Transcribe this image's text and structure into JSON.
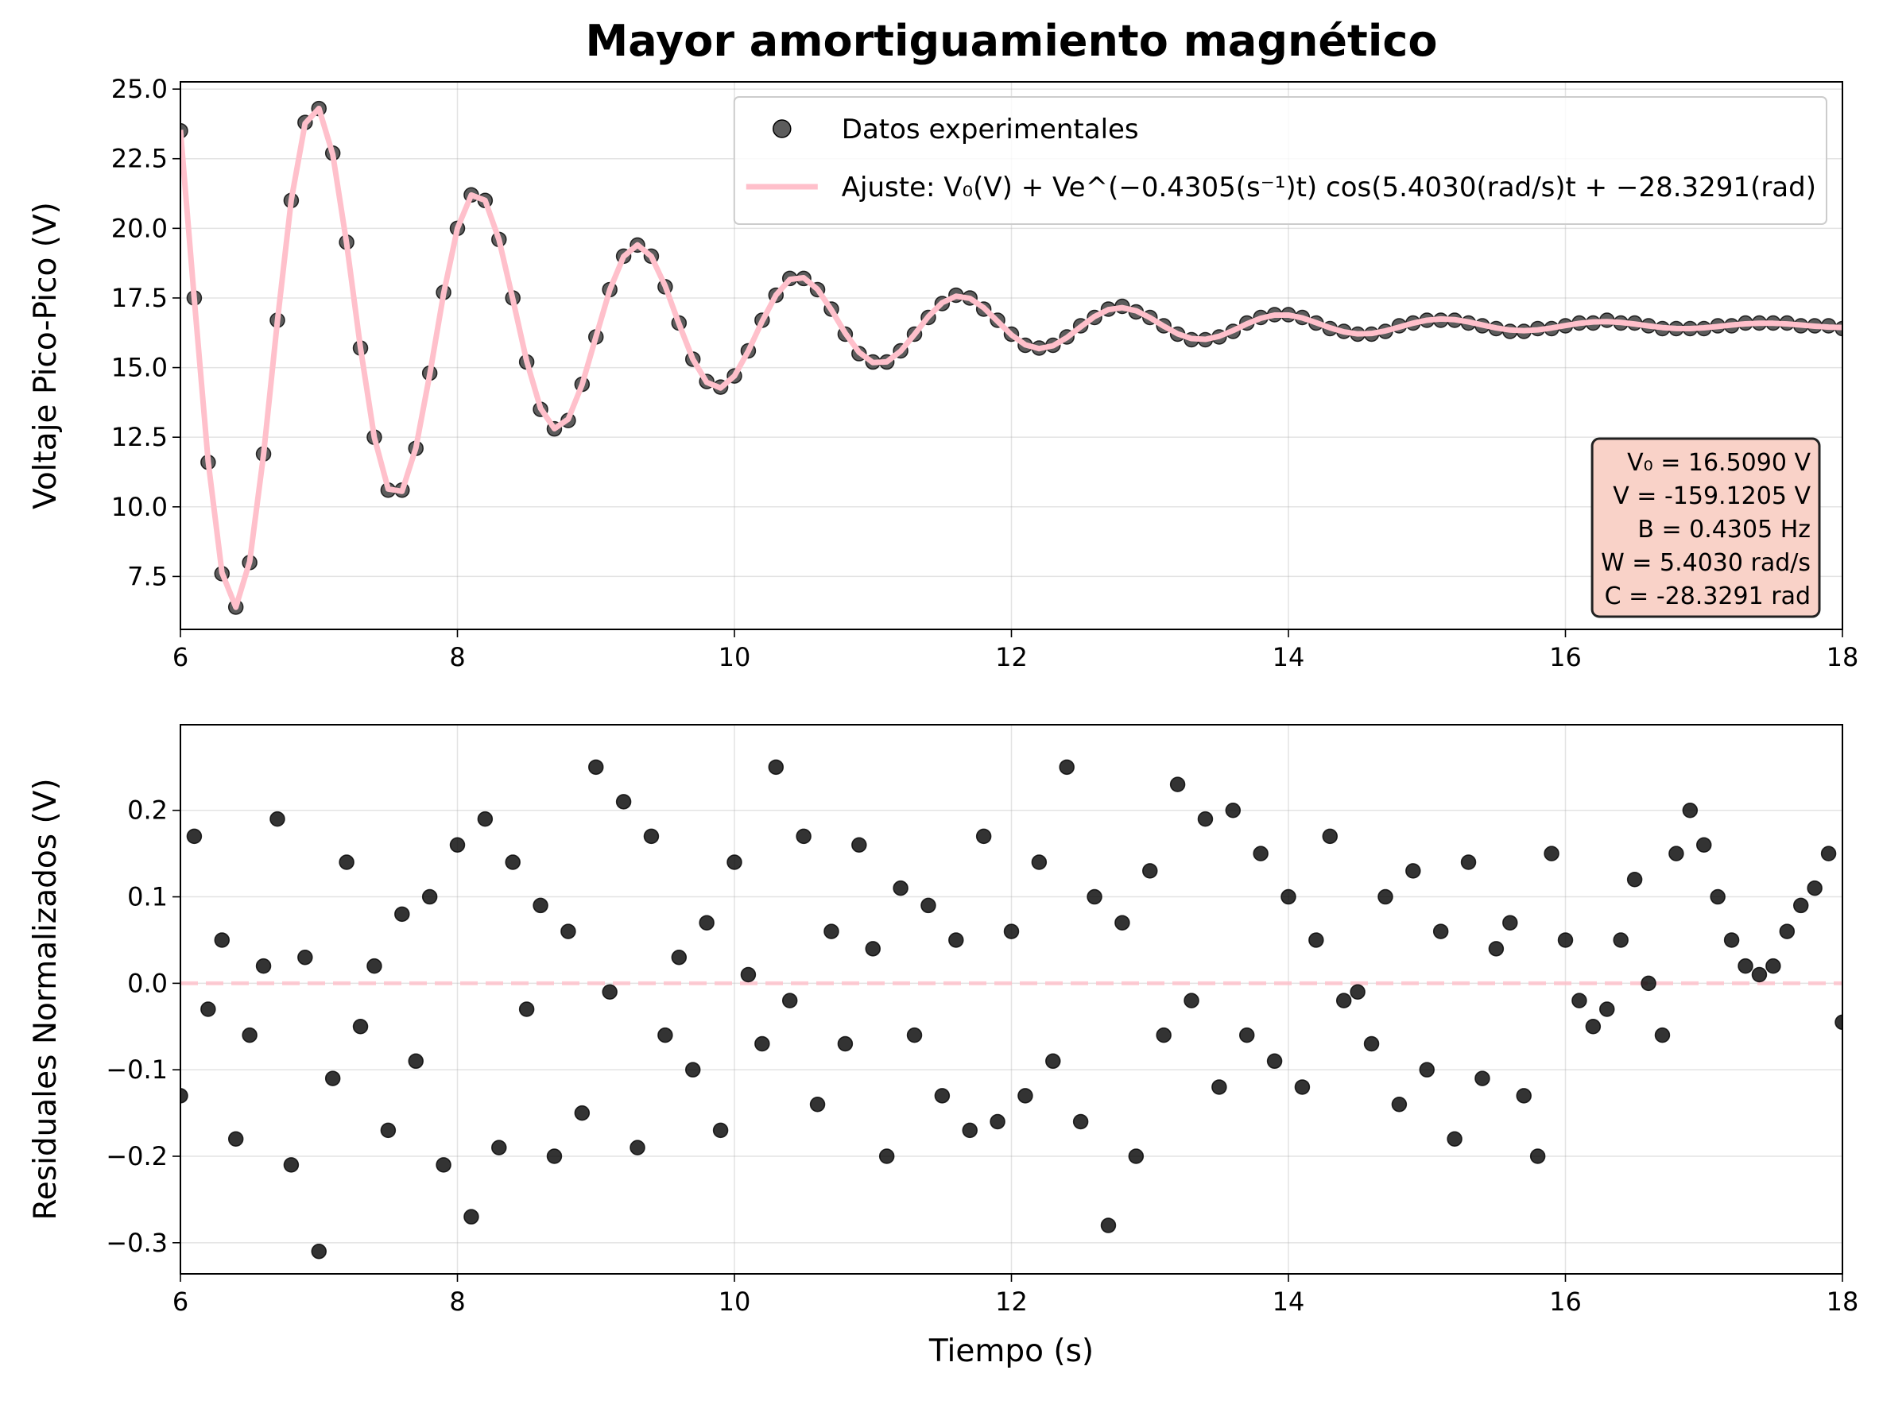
{
  "chart_data": [
    {
      "type": "scatter",
      "title": "Mayor amortiguamiento magnético",
      "ylabel": "Voltaje Pico-Pico (V)",
      "xlim": [
        6,
        18
      ],
      "xticks": [
        6,
        8,
        10,
        12,
        14,
        16,
        18
      ],
      "ylim": [
        5.6,
        25.26
      ],
      "yticks": [
        {
          "value": 7.5,
          "label": "7.5"
        },
        {
          "value": 10,
          "label": "10.0"
        },
        {
          "value": 12.5,
          "label": "12.5"
        },
        {
          "value": 15,
          "label": "15.0"
        },
        {
          "value": 17.5,
          "label": "17.5"
        },
        {
          "value": 20,
          "label": "20.0"
        },
        {
          "value": 22.5,
          "label": "22.5"
        },
        {
          "value": 25,
          "label": "25.0"
        }
      ],
      "grid": true,
      "legend": "upper right",
      "x": [
        6,
        6.1,
        6.2,
        6.3,
        6.4,
        6.5,
        6.6,
        6.7,
        6.8,
        6.9,
        7,
        7.1,
        7.2,
        7.3,
        7.4,
        7.5,
        7.6,
        7.7,
        7.8,
        7.9,
        8,
        8.1,
        8.2,
        8.3,
        8.4,
        8.5,
        8.6,
        8.7,
        8.8,
        8.9,
        9,
        9.1,
        9.2,
        9.3,
        9.4,
        9.5,
        9.6,
        9.7,
        9.8,
        9.9,
        10,
        10.1,
        10.2,
        10.3,
        10.4,
        10.5,
        10.6,
        10.7,
        10.8,
        10.9,
        11,
        11.1,
        11.2,
        11.3,
        11.4,
        11.5,
        11.6,
        11.7,
        11.8,
        11.9,
        12,
        12.1,
        12.2,
        12.3,
        12.4,
        12.5,
        12.6,
        12.7,
        12.8,
        12.9,
        13,
        13.1,
        13.2,
        13.3,
        13.4,
        13.5,
        13.6,
        13.7,
        13.8,
        13.9,
        14,
        14.1,
        14.2,
        14.3,
        14.4,
        14.5,
        14.6,
        14.7,
        14.8,
        14.9,
        15,
        15.1,
        15.2,
        15.3,
        15.4,
        15.5,
        15.6,
        15.7,
        15.8,
        15.9,
        16,
        16.1,
        16.2,
        16.3,
        16.4,
        16.5,
        16.6,
        16.7,
        16.8,
        16.9,
        17,
        17.1,
        17.2,
        17.3,
        17.4,
        17.5,
        17.6,
        17.7,
        17.8,
        17.9,
        18
      ],
      "series": [
        {
          "name": "Datos experimentales",
          "type": "scatter",
          "color": "#333333",
          "values": [
            23.5,
            17.5,
            11.6,
            7.6,
            6.4,
            8.0,
            11.9,
            16.7,
            21.0,
            23.8,
            24.3,
            22.7,
            19.5,
            15.7,
            12.5,
            10.6,
            10.6,
            12.1,
            14.8,
            17.7,
            20.0,
            21.2,
            21.0,
            19.6,
            17.5,
            15.2,
            13.5,
            12.8,
            13.1,
            14.4,
            16.1,
            17.8,
            19.0,
            19.4,
            19.0,
            17.9,
            16.6,
            15.3,
            14.5,
            14.3,
            14.7,
            15.6,
            16.7,
            17.6,
            18.2,
            18.2,
            17.8,
            17.1,
            16.2,
            15.5,
            15.2,
            15.2,
            15.6,
            16.2,
            16.8,
            17.3,
            17.6,
            17.5,
            17.1,
            16.7,
            16.2,
            15.8,
            15.7,
            15.8,
            16.1,
            16.5,
            16.8,
            17.1,
            17.2,
            17.0,
            16.8,
            16.5,
            16.2,
            16.0,
            16.0,
            16.1,
            16.3,
            16.6,
            16.8,
            16.9,
            16.9,
            16.8,
            16.6,
            16.4,
            16.3,
            16.2,
            16.2,
            16.3,
            16.5,
            16.6,
            16.7,
            16.7,
            16.7,
            16.6,
            16.5,
            16.4,
            16.3,
            16.3,
            16.4,
            16.4,
            16.5,
            16.6,
            16.6,
            16.7,
            16.6,
            16.6,
            16.5,
            16.4,
            16.4,
            16.4,
            16.4,
            16.5,
            16.5,
            16.6,
            16.6,
            16.6,
            16.6,
            16.5,
            16.5,
            16.5,
            16.4
          ]
        },
        {
          "name": "Ajuste: V₀(V) + Ve^(−0.4305(s⁻¹)t) cos(5.4030(rad/s)t + −28.3291(rad)",
          "type": "line",
          "color": "#ffc0cb",
          "values": [
            23.535,
            17.466,
            11.642,
            7.636,
            6.396,
            8.037,
            11.868,
            16.66,
            21.013,
            23.765,
            24.305,
            22.655,
            19.459,
            15.706,
            12.489,
            10.642,
            10.557,
            12.116,
            14.751,
            17.654,
            20.002,
            21.196,
            21.004,
            19.595,
            17.454,
            15.23,
            13.54,
            12.807,
            13.149,
            14.388,
            16.105,
            17.791,
            18.989,
            19.404,
            18.99,
            17.932,
            16.566,
            15.299,
            14.47,
            14.268,
            14.699,
            15.592,
            16.662,
            17.603,
            18.165,
            18.226,
            17.81,
            17.072,
            16.239,
            15.549,
            15.18,
            15.207,
            15.588,
            16.192,
            16.832,
            17.331,
            17.563,
            17.487,
            17.148,
            16.662,
            16.174,
            15.818,
            15.681,
            15.783,
            16.076,
            16.464,
            16.832,
            17.081,
            17.152,
            17.041,
            16.792,
            16.487,
            16.213,
            16.042,
            16.014,
            16.124,
            16.331,
            16.57,
            16.771,
            16.885,
            16.886,
            16.783,
            16.613,
            16.429,
            16.282,
            16.21,
            16.225,
            16.317,
            16.455,
            16.596,
            16.701,
            16.745,
            16.721,
            16.64,
            16.53,
            16.423,
            16.349,
            16.325,
            16.353,
            16.422,
            16.509,
            16.589,
            16.64,
            16.651,
            16.622,
            16.565,
            16.497,
            16.437,
            16.403,
            16.4,
            16.428,
            16.475,
            16.528,
            16.572,
            16.594,
            16.591,
            16.567,
            16.528,
            16.487,
            16.455,
            16.441
          ]
        }
      ],
      "annotation": {
        "position": "lower right",
        "color": "#f9d2c8",
        "lines": [
          "V₀ = 16.5090 V",
          "V = -159.1205 V",
          "B = 0.4305 Hz",
          "W = 5.4030 rad/s",
          "C = -28.3291 rad"
        ]
      }
    },
    {
      "type": "scatter",
      "xlabel": "Tiempo (s)",
      "ylabel": "Residuales Normalizados (V)",
      "xlim": [
        6,
        18
      ],
      "xticks": [
        6,
        8,
        10,
        12,
        14,
        16,
        18
      ],
      "ylim": [
        -0.336,
        0.299
      ],
      "yticks": [
        {
          "value": -0.3,
          "label": "−0.3"
        },
        {
          "value": -0.2,
          "label": "−0.2"
        },
        {
          "value": -0.1,
          "label": "−0.1"
        },
        {
          "value": 0,
          "label": "0.0"
        },
        {
          "value": 0.1,
          "label": "0.1"
        },
        {
          "value": 0.2,
          "label": "0.2"
        }
      ],
      "grid": true,
      "hline": {
        "value": 0,
        "color": "#ffc0cb",
        "style": "dashed"
      },
      "x": [
        6,
        6.1,
        6.2,
        6.3,
        6.4,
        6.5,
        6.6,
        6.7,
        6.8,
        6.9,
        7,
        7.1,
        7.2,
        7.3,
        7.4,
        7.5,
        7.6,
        7.7,
        7.8,
        7.9,
        8,
        8.1,
        8.2,
        8.3,
        8.4,
        8.5,
        8.6,
        8.7,
        8.8,
        8.9,
        9,
        9.1,
        9.2,
        9.3,
        9.4,
        9.5,
        9.6,
        9.7,
        9.8,
        9.9,
        10,
        10.1,
        10.2,
        10.3,
        10.4,
        10.5,
        10.6,
        10.7,
        10.8,
        10.9,
        11,
        11.1,
        11.2,
        11.3,
        11.4,
        11.5,
        11.6,
        11.7,
        11.8,
        11.9,
        12,
        12.1,
        12.2,
        12.3,
        12.4,
        12.5,
        12.6,
        12.7,
        12.8,
        12.9,
        13,
        13.1,
        13.2,
        13.3,
        13.4,
        13.5,
        13.6,
        13.7,
        13.8,
        13.9,
        14,
        14.1,
        14.2,
        14.3,
        14.4,
        14.5,
        14.6,
        14.7,
        14.8,
        14.9,
        15,
        15.1,
        15.2,
        15.3,
        15.4,
        15.5,
        15.6,
        15.7,
        15.8,
        15.9,
        16,
        16.1,
        16.2,
        16.3,
        16.4,
        16.5,
        16.6,
        16.7,
        16.8,
        16.9,
        17,
        17.1,
        17.2,
        17.3,
        17.4,
        17.5,
        17.6,
        17.7,
        17.8,
        17.9,
        18
      ],
      "series": [
        {
          "type": "scatter",
          "color": "#000000",
          "values": [
            -0.13,
            0.17,
            -0.03,
            0.05,
            -0.18,
            -0.06,
            0.02,
            0.19,
            -0.21,
            0.03,
            -0.31,
            -0.11,
            0.14,
            -0.05,
            0.02,
            -0.17,
            0.08,
            -0.09,
            0.1,
            -0.21,
            0.16,
            -0.27,
            0.19,
            -0.19,
            0.14,
            -0.03,
            0.09,
            -0.2,
            0.06,
            -0.15,
            0.25,
            -0.01,
            0.21,
            -0.19,
            0.17,
            -0.06,
            0.03,
            -0.1,
            0.07,
            -0.17,
            0.14,
            0.01,
            -0.07,
            0.25,
            -0.02,
            0.17,
            -0.14,
            0.06,
            -0.07,
            0.16,
            0.04,
            -0.2,
            0.11,
            -0.06,
            0.09,
            -0.13,
            0.05,
            -0.17,
            0.17,
            -0.16,
            0.06,
            -0.13,
            0.14,
            -0.09,
            0.25,
            -0.16,
            0.1,
            -0.28,
            0.07,
            -0.2,
            0.13,
            -0.06,
            0.23,
            -0.02,
            0.19,
            -0.12,
            0.2,
            -0.06,
            0.15,
            -0.09,
            0.1,
            -0.12,
            0.05,
            0.17,
            -0.02,
            -0.01,
            -0.07,
            0.1,
            -0.14,
            0.13,
            -0.1,
            0.06,
            -0.18,
            0.14,
            -0.11,
            0.04,
            0.07,
            -0.13,
            -0.2,
            0.15,
            0.05,
            -0.02,
            -0.05,
            -0.03,
            0.05,
            0.12,
            0.0,
            -0.06,
            0.15,
            0.2,
            0.16,
            0.1,
            0.05,
            0.02,
            0.01,
            0.02,
            0.06,
            0.09,
            0.11,
            0.15,
            -0.045
          ]
        }
      ]
    }
  ]
}
